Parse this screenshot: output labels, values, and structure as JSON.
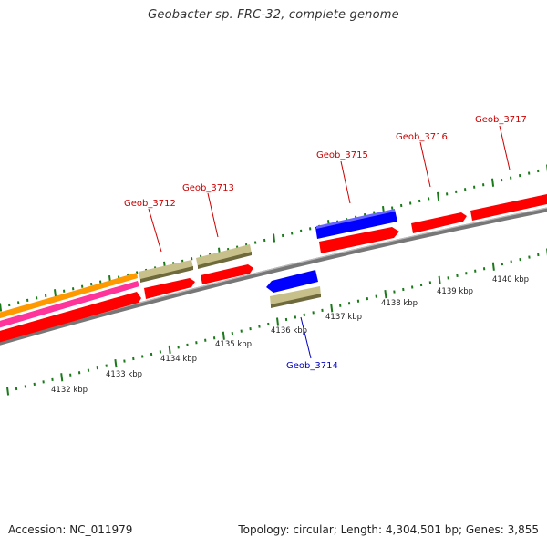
{
  "title": "Geobacter sp. FRC-32, complete genome",
  "footer": {
    "accession": "Accession: NC_011979",
    "summary": "Topology: circular; Length: 4,304,501 bp; Genes: 3,855"
  },
  "colors": {
    "forward_gene": "#ff0000",
    "reverse_gene": "#0000ff",
    "feature_khaki": "#c8c08a",
    "orange_feature": "#ff9900",
    "pink_feature": "#ff3399",
    "backbone": "#888888",
    "ticks": "#1a7a1a",
    "label_forward": "#cc0000",
    "label_reverse": "#0000bb"
  },
  "kbp_labels": [
    "4132 kbp",
    "4133 kbp",
    "4134 kbp",
    "4135 kbp",
    "4136 kbp",
    "4137 kbp",
    "4138 kbp",
    "4139 kbp",
    "4140 kbp"
  ],
  "genes": [
    {
      "name": "Geob_3712",
      "strand": "forward"
    },
    {
      "name": "Geob_3713",
      "strand": "forward"
    },
    {
      "name": "Geob_3714",
      "strand": "reverse"
    },
    {
      "name": "Geob_3715",
      "strand": "forward"
    },
    {
      "name": "Geob_3716",
      "strand": "forward"
    },
    {
      "name": "Geob_3717",
      "strand": "forward"
    }
  ]
}
